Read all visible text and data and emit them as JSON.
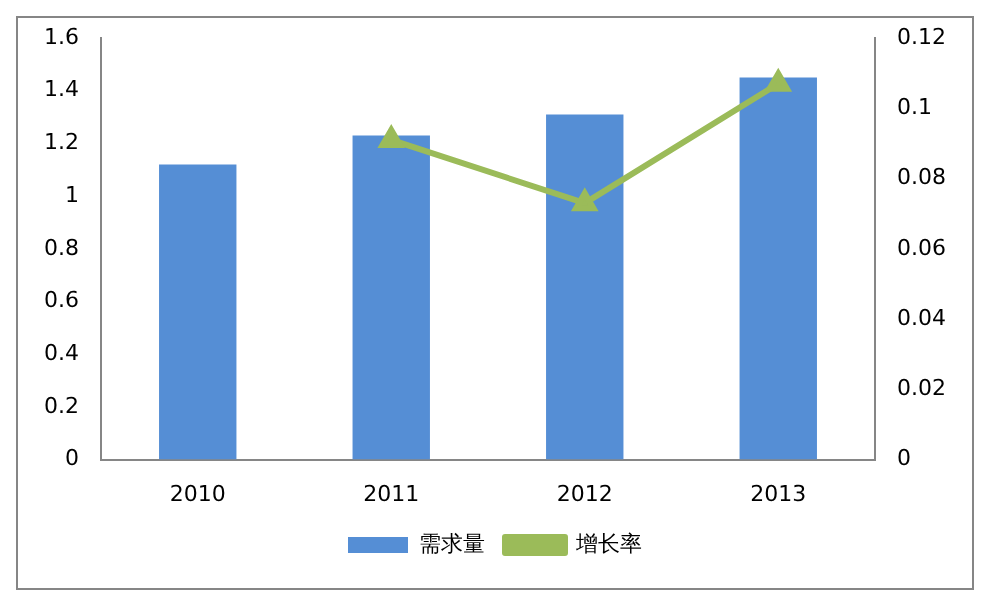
{
  "chart_data": {
    "type": "bar",
    "categories": [
      "2010",
      "2011",
      "2012",
      "2013"
    ],
    "series": [
      {
        "name": "需求量",
        "color": "#558ed5",
        "values": [
          1.12,
          1.23,
          1.31,
          1.45
        ]
      },
      {
        "name": "增长率",
        "type": "line",
        "axis": "y2",
        "color": "#9bbb59",
        "marker": "triangle",
        "values": [
          null,
          0.091,
          0.073,
          0.107
        ]
      }
    ],
    "ylim": [
      0,
      1.6
    ],
    "yticks": [
      0,
      0.2,
      0.4,
      0.6,
      0.8,
      1,
      1.2,
      1.4,
      1.6
    ],
    "y2lim": [
      0,
      0.12
    ],
    "y2ticks": [
      0,
      0.02,
      0.04,
      0.06,
      0.08,
      0.1,
      0.12
    ],
    "grid": false,
    "legend": "bottom"
  }
}
